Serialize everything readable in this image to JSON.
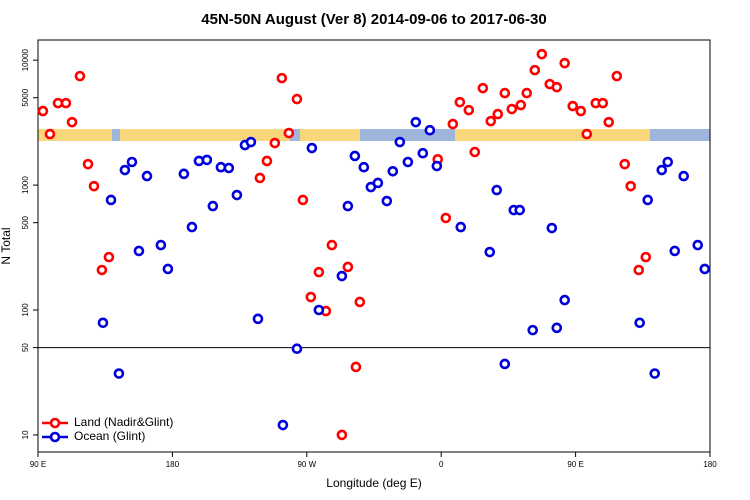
{
  "chart_data": {
    "type": "scatter",
    "title": "45N-50N August (Ver 8)   2014-09-06 to 2017-06-30",
    "xlabel": "Longitude (deg E)",
    "ylabel": "N Total",
    "xlim": [
      90,
      540
    ],
    "xticks": [
      {
        "value": 90,
        "label": "90 E"
      },
      180,
      {
        "value": 270,
        "label": "90 W"
      },
      {
        "value": 360,
        "label": "0"
      },
      {
        "value": 450,
        "label": "90 E"
      },
      {
        "value": 540,
        "label": "180"
      }
    ],
    "ylim": [
      7.3,
      14500
    ],
    "yticks": [
      10,
      50,
      100,
      500,
      1000,
      5000,
      10000
    ],
    "log_y": true,
    "hline": 50,
    "legend": "lower left",
    "series": [
      {
        "name": "Land (Nadir&Glint)",
        "color": "#ff0000",
        "x": [
          93.3,
          98,
          103.4,
          108.7,
          112.8,
          118.1,
          123.5,
          127.5,
          132.8,
          137.5,
          238.6,
          243.3,
          248.6,
          253.3,
          258,
          263.4,
          267.4,
          272.7,
          278.1,
          282.8,
          286.8,
          293.5,
          297.5,
          302.9,
          305.5,
          357.7,
          363.1,
          367.8,
          372.5,
          378.5,
          382.5,
          387.9,
          393.2,
          397.9,
          402.6,
          407.3,
          413.3,
          417.3,
          422.7,
          427.4,
          432.7,
          437.4,
          442.7,
          448.1,
          453.5,
          457.5,
          463.5,
          468.2,
          472.2,
          477.6,
          482.9,
          486.9,
          492.3,
          497
        ],
        "values": [
          3910,
          2560,
          4530,
          4530,
          3190,
          7450,
          1470,
          980,
          209,
          265,
          1140,
          1560,
          2170,
          7180,
          2610,
          4880,
          760,
          127,
          201,
          98,
          331,
          10,
          221,
          35,
          116,
          1610,
          545,
          3080,
          4610,
          3980,
          1840,
          5970,
          3250,
          3700,
          5450,
          4060,
          4370,
          5450,
          8320,
          11170,
          6430,
          6080,
          9460,
          4290,
          3910,
          2560,
          4530,
          4530,
          3190,
          7450,
          1470,
          980,
          209,
          265
        ]
      },
      {
        "name": "Ocean (Glint)",
        "color": "#0000dd",
        "x": [
          138.9,
          133.5,
          144.2,
          148.2,
          152.9,
          157.6,
          163,
          172.3,
          177,
          187.7,
          193.1,
          197.8,
          203.1,
          207.1,
          212.5,
          217.8,
          223.2,
          228.6,
          232.6,
          237.3,
          254,
          263.4,
          273.4,
          278.1,
          293.5,
          297.5,
          302.2,
          308.2,
          312.9,
          317.6,
          323.6,
          327.6,
          332.3,
          337.7,
          343,
          347.7,
          352.4,
          357.1,
          373.1,
          392.5,
          397.2,
          402.6,
          408.6,
          412.6,
          421.3,
          434.1,
          437.4,
          442.7,
          492.9,
          498.3,
          503,
          507.7,
          511.7,
          516.4,
          522.4,
          531.8,
          536.5
        ],
        "values": [
          760,
          79,
          31,
          1320,
          1530,
          297,
          1180,
          331,
          213,
          1230,
          461,
          1560,
          1590,
          679,
          1390,
          1370,
          832,
          2090,
          2210,
          85,
          12,
          49,
          1980,
          100,
          187,
          679,
          1710,
          1390,
          964,
          1040,
          745,
          1290,
          2210,
          1530,
          3190,
          1800,
          2750,
          1420,
          461,
          291,
          912,
          37,
          631,
          631,
          69,
          453,
          72,
          120,
          79,
          760,
          31,
          1320,
          1530,
          297,
          1180,
          331,
          213
        ]
      }
    ]
  }
}
